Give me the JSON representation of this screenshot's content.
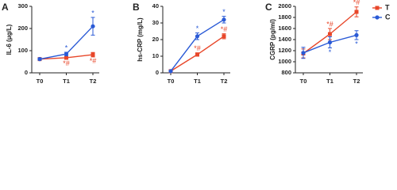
{
  "chart_data": [
    {
      "type": "line",
      "title": "A",
      "y_label": "IL-6 (μg/L)",
      "categories": [
        "T0",
        "T1",
        "T2"
      ],
      "ylim": [
        0,
        300
      ],
      "yticks": [
        0,
        100,
        200,
        300
      ],
      "series": [
        {
          "color": "#e8472a",
          "marker": "square",
          "values": [
            62,
            68,
            82
          ],
          "errors": [
            5,
            6,
            10
          ],
          "annotations": [
            null,
            "*#",
            "*#"
          ],
          "annotation_position": "below"
        },
        {
          "color": "#2a5ad6",
          "marker": "circle",
          "values": [
            62,
            85,
            210
          ],
          "errors": [
            5,
            8,
            40
          ],
          "annotations": [
            null,
            "*",
            "*"
          ],
          "annotation_position": "above"
        }
      ]
    },
    {
      "type": "line",
      "title": "B",
      "y_label": "hs-CRP (mg/L)",
      "categories": [
        "T0",
        "T1",
        "T2"
      ],
      "ylim": [
        0,
        40
      ],
      "yticks": [
        0,
        10,
        20,
        30,
        40
      ],
      "series": [
        {
          "color": "#e8472a",
          "marker": "square",
          "values": [
            1,
            11,
            22
          ],
          "errors": [
            0.5,
            1,
            1.5
          ],
          "annotations": [
            null,
            "*#",
            "*#"
          ],
          "annotation_position": "above"
        },
        {
          "color": "#2a5ad6",
          "marker": "circle",
          "values": [
            1,
            22,
            32
          ],
          "errors": [
            0.5,
            2,
            2
          ],
          "annotations": [
            null,
            "*",
            "*"
          ],
          "annotation_position": "above"
        }
      ]
    },
    {
      "type": "line",
      "title": "C",
      "y_label": "CGRP (pg/ml)",
      "categories": [
        "T0",
        "T1",
        "T2"
      ],
      "ylim": [
        800,
        2000
      ],
      "yticks": [
        800,
        1000,
        1200,
        1400,
        1600,
        1800,
        2000
      ],
      "legend": true,
      "series": [
        {
          "name": "T",
          "color": "#e8472a",
          "marker": "square",
          "values": [
            1150,
            1500,
            1900
          ],
          "errors": [
            80,
            100,
            90
          ],
          "annotations": [
            null,
            "*#",
            "*#"
          ],
          "annotation_position": "above"
        },
        {
          "name": "C",
          "color": "#2a5ad6",
          "marker": "circle",
          "values": [
            1160,
            1350,
            1480
          ],
          "errors": [
            100,
            100,
            80
          ],
          "annotations": [
            null,
            "*",
            "*"
          ],
          "annotation_position": "below"
        }
      ]
    }
  ]
}
